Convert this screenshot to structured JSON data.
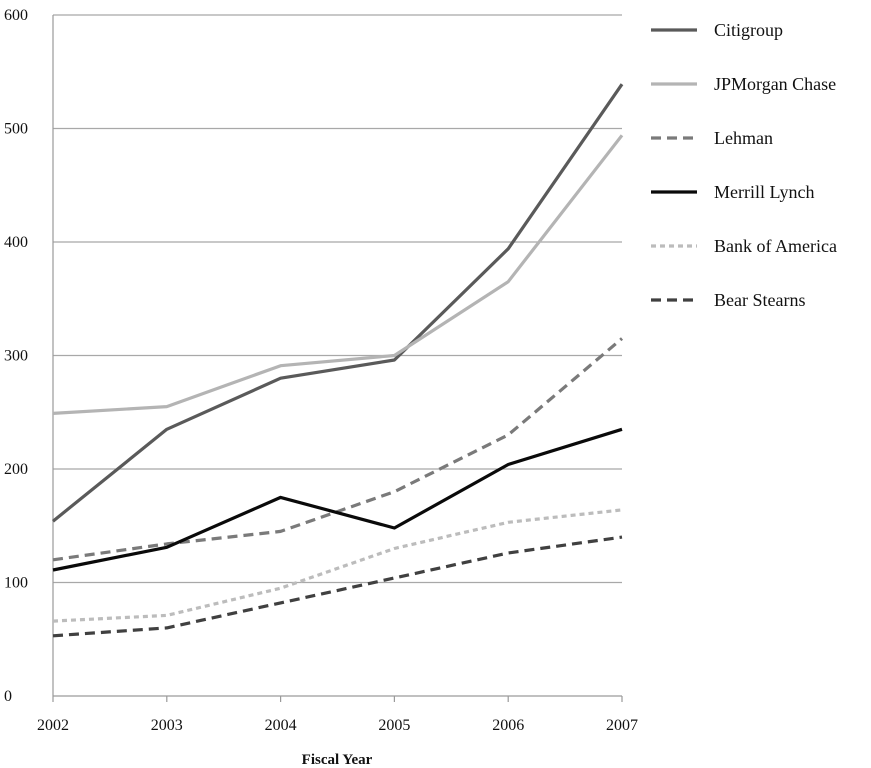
{
  "chart_data": {
    "type": "line",
    "title": "",
    "xlabel": "Fiscal Year",
    "ylabel": "",
    "x": [
      2002,
      2003,
      2004,
      2005,
      2006,
      2007
    ],
    "x_tick_labels": [
      "2002",
      "2003",
      "2004",
      "2005",
      "2006",
      "2007"
    ],
    "y_ticks": [
      0,
      100,
      200,
      300,
      400,
      500,
      600
    ],
    "y_tick_labels": [
      "0",
      "100",
      "200",
      "300",
      "400",
      "500",
      "600"
    ],
    "ylim": [
      0,
      600
    ],
    "grid": "horizontal",
    "legend_position": "right",
    "series": [
      {
        "name": "Citigroup",
        "values": [
          154,
          235,
          280,
          296,
          394,
          539
        ],
        "color": "#5a5a5a",
        "dash": "solid"
      },
      {
        "name": "JPMorgan Chase",
        "values": [
          249,
          255,
          291,
          300,
          365,
          494
        ],
        "color": "#b4b4b4",
        "dash": "solid"
      },
      {
        "name": "Lehman",
        "values": [
          120,
          134,
          145,
          180,
          230,
          315
        ],
        "color": "#7a7a7a",
        "dash": "dashed"
      },
      {
        "name": "Merrill Lynch",
        "values": [
          111,
          131,
          175,
          148,
          204,
          235
        ],
        "color": "#0a0a0a",
        "dash": "solid"
      },
      {
        "name": "Bank of America",
        "values": [
          66,
          71,
          95,
          130,
          153,
          164
        ],
        "color": "#bcbcbc",
        "dash": "dotted"
      },
      {
        "name": "Bear Stearns",
        "values": [
          53,
          60,
          82,
          104,
          126,
          140
        ],
        "color": "#404040",
        "dash": "dashed"
      }
    ]
  }
}
